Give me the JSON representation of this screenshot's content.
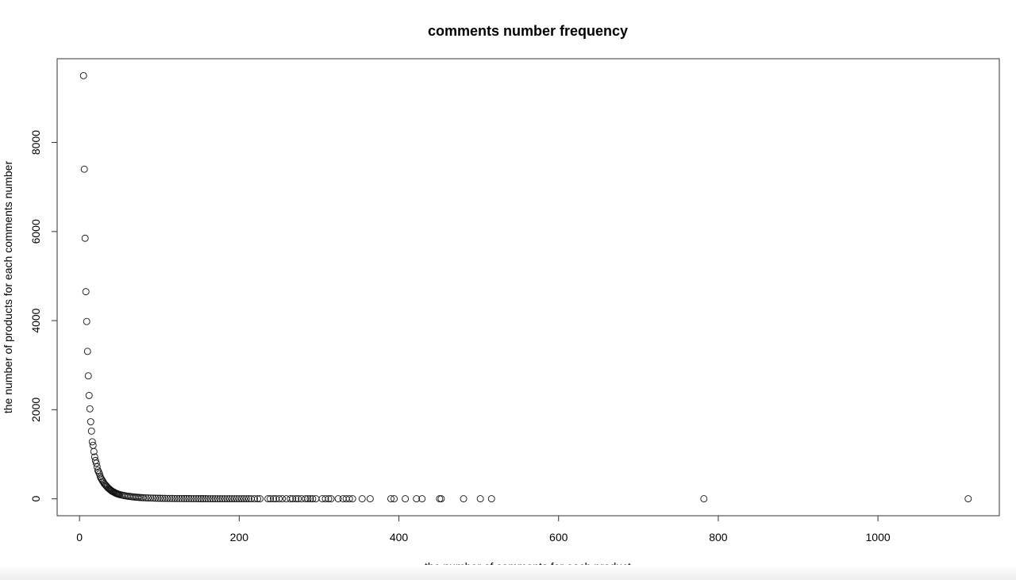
{
  "chart_data": {
    "type": "scatter",
    "title": "comments number frequency",
    "xlabel": "the number of comments for each product",
    "ylabel": "the number of products for each comments number",
    "xlim": [
      -28,
      1152
    ],
    "ylim": [
      -380,
      9880
    ],
    "xticks": [
      0,
      200,
      400,
      600,
      800,
      1000
    ],
    "yticks": [
      0,
      2000,
      4000,
      6000,
      8000
    ],
    "xtick_labels": [
      "0",
      "200",
      "400",
      "600",
      "800",
      "1000"
    ],
    "ytick_labels": [
      "0",
      "2000",
      "4000",
      "6000",
      "8000"
    ],
    "grid": false,
    "marker": "open-circle",
    "series": [
      {
        "points": [
          [
            5,
            9500
          ],
          [
            6,
            7400
          ],
          [
            7,
            5850
          ],
          [
            8,
            4650
          ],
          [
            9,
            3980
          ],
          [
            10,
            3310
          ],
          [
            11,
            2760
          ],
          [
            12,
            2320
          ],
          [
            13,
            2020
          ],
          [
            14,
            1730
          ],
          [
            15,
            1520
          ],
          [
            16,
            1280
          ],
          [
            17,
            1200
          ],
          [
            18,
            1060
          ],
          [
            19,
            940
          ],
          [
            20,
            860
          ],
          [
            21,
            800
          ],
          [
            22,
            720
          ],
          [
            23,
            640
          ],
          [
            24,
            600
          ],
          [
            25,
            560
          ],
          [
            26,
            500
          ],
          [
            27,
            460
          ],
          [
            28,
            430
          ],
          [
            29,
            400
          ],
          [
            30,
            370
          ],
          [
            31,
            340
          ],
          [
            32,
            320
          ],
          [
            33,
            300
          ],
          [
            34,
            280
          ],
          [
            35,
            260
          ],
          [
            36,
            240
          ],
          [
            37,
            225
          ],
          [
            38,
            210
          ],
          [
            39,
            195
          ],
          [
            40,
            180
          ],
          [
            41,
            170
          ],
          [
            42,
            160
          ],
          [
            43,
            150
          ],
          [
            44,
            140
          ],
          [
            45,
            130
          ],
          [
            46,
            122
          ],
          [
            47,
            115
          ],
          [
            48,
            108
          ],
          [
            49,
            102
          ],
          [
            50,
            96
          ],
          [
            52,
            88
          ],
          [
            54,
            80
          ],
          [
            56,
            72
          ],
          [
            58,
            66
          ],
          [
            60,
            60
          ],
          [
            62,
            55
          ],
          [
            64,
            50
          ],
          [
            66,
            46
          ],
          [
            68,
            42
          ],
          [
            70,
            38
          ],
          [
            72,
            35
          ],
          [
            74,
            32
          ],
          [
            76,
            29
          ],
          [
            78,
            27
          ],
          [
            80,
            25
          ],
          [
            83,
            22
          ],
          [
            86,
            20
          ],
          [
            89,
            18
          ],
          [
            92,
            16
          ],
          [
            95,
            14
          ],
          [
            98,
            13
          ],
          [
            101,
            12
          ],
          [
            104,
            11
          ],
          [
            107,
            10
          ],
          [
            110,
            9
          ],
          [
            113,
            8
          ],
          [
            116,
            8
          ],
          [
            119,
            7
          ],
          [
            122,
            7
          ],
          [
            125,
            6
          ],
          [
            128,
            6
          ],
          [
            131,
            5
          ],
          [
            134,
            5
          ],
          [
            137,
            5
          ],
          [
            140,
            4
          ],
          [
            143,
            4
          ],
          [
            146,
            4
          ],
          [
            149,
            3
          ],
          [
            152,
            3
          ],
          [
            155,
            3
          ],
          [
            158,
            3
          ],
          [
            161,
            2
          ],
          [
            164,
            2
          ],
          [
            167,
            2
          ],
          [
            170,
            2
          ],
          [
            173,
            2
          ],
          [
            176,
            2
          ],
          [
            179,
            2
          ],
          [
            182,
            1
          ],
          [
            185,
            1
          ],
          [
            188,
            1
          ],
          [
            191,
            1
          ],
          [
            194,
            1
          ],
          [
            197,
            1
          ],
          [
            200,
            1
          ],
          [
            203,
            1
          ],
          [
            206,
            1
          ],
          [
            209,
            1
          ],
          [
            212,
            1
          ],
          [
            215,
            1
          ],
          [
            219,
            1
          ],
          [
            223,
            1
          ],
          [
            226,
            1
          ],
          [
            236,
            1
          ],
          [
            239,
            1
          ],
          [
            243,
            1
          ],
          [
            246,
            1
          ],
          [
            250,
            1
          ],
          [
            254,
            1
          ],
          [
            259,
            1
          ],
          [
            264,
            1
          ],
          [
            267,
            1
          ],
          [
            271,
            1
          ],
          [
            274,
            1
          ],
          [
            278,
            1
          ],
          [
            283,
            1
          ],
          [
            286,
            1
          ],
          [
            289,
            1
          ],
          [
            292,
            1
          ],
          [
            296,
            1
          ],
          [
            304,
            1
          ],
          [
            308,
            1
          ],
          [
            312,
            1
          ],
          [
            315,
            1
          ],
          [
            324,
            1
          ],
          [
            330,
            1
          ],
          [
            334,
            1
          ],
          [
            338,
            1
          ],
          [
            342,
            1
          ],
          [
            354,
            1
          ],
          [
            364,
            1
          ],
          [
            390,
            1
          ],
          [
            394,
            1
          ],
          [
            408,
            1
          ],
          [
            422,
            1
          ],
          [
            429,
            1
          ],
          [
            451,
            1
          ],
          [
            453,
            1
          ],
          [
            481,
            1
          ],
          [
            502,
            1
          ],
          [
            516,
            1
          ],
          [
            782,
            1
          ],
          [
            1113,
            1
          ]
        ]
      }
    ]
  }
}
